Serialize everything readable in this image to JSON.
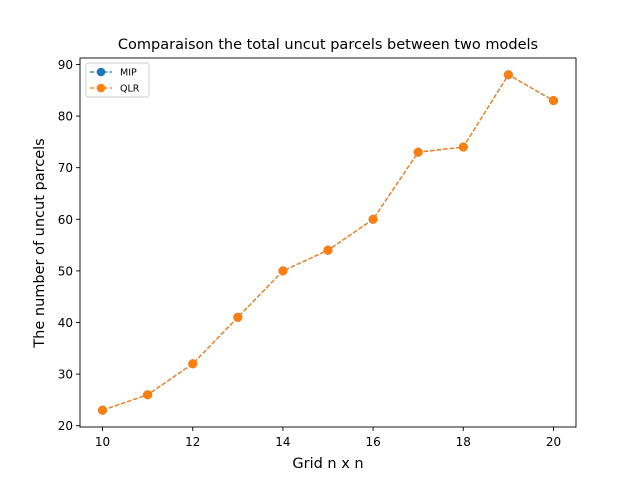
{
  "chart_data": {
    "type": "line",
    "title": "Comparaison the total uncut parcels between two models",
    "xlabel": "Grid n x n",
    "ylabel": "The number of uncut parcels",
    "x": [
      10,
      11,
      12,
      13,
      14,
      15,
      16,
      17,
      18,
      19,
      20
    ],
    "xlim": [
      9.5,
      20.5
    ],
    "ylim": [
      19.75,
      91.25
    ],
    "xticks": [
      10,
      12,
      14,
      16,
      18,
      20
    ],
    "yticks": [
      20,
      30,
      40,
      50,
      60,
      70,
      80,
      90
    ],
    "legend_position": "upper-left",
    "grid": false,
    "series": [
      {
        "name": "MIP",
        "color": "#1f77b4",
        "linestyle": "dashed",
        "marker": "circle",
        "values": [
          23,
          26,
          32,
          41,
          50,
          54,
          60,
          73,
          74,
          88,
          83
        ]
      },
      {
        "name": "QLR",
        "color": "#ff7f0e",
        "linestyle": "dashed",
        "marker": "circle",
        "values": [
          23,
          26,
          32,
          41,
          50,
          54,
          60,
          73,
          74,
          88,
          83
        ]
      }
    ]
  }
}
